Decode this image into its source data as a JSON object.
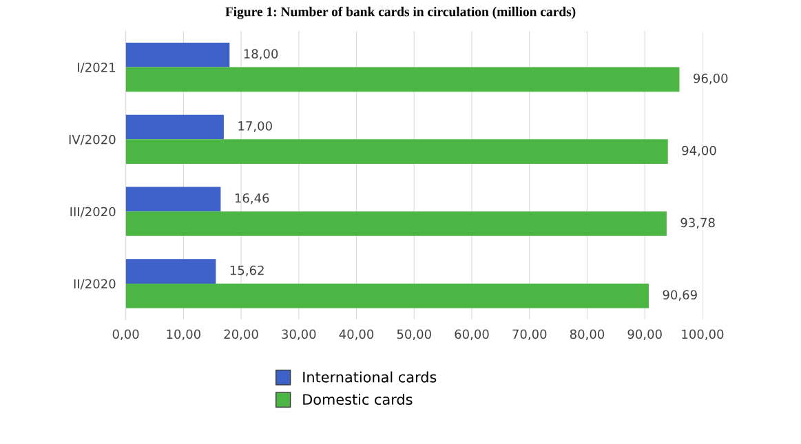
{
  "chart_data": {
    "type": "bar",
    "orientation": "horizontal",
    "title": "Figure 1: Number of bank cards in circulation (million cards)",
    "categories": [
      "I/2021",
      "IV/2020",
      "III/2020",
      "II/2020"
    ],
    "series": [
      {
        "name": "International cards",
        "color": "#3f62c8",
        "values": [
          18.0,
          17.0,
          16.46,
          15.62
        ],
        "value_labels": [
          "18,00",
          "17,00",
          "16,46",
          "15,62"
        ]
      },
      {
        "name": "Domestic cards",
        "color": "#4cb644",
        "values": [
          96.0,
          94.0,
          93.78,
          90.69
        ],
        "value_labels": [
          "96,00",
          "94,00",
          "93,78",
          "90,69"
        ]
      }
    ],
    "xlim": [
      0,
      100
    ],
    "xticks": [
      {
        "value": 0,
        "label": "0,00"
      },
      {
        "value": 10,
        "label": "10,00"
      },
      {
        "value": 20,
        "label": "20,00"
      },
      {
        "value": 30,
        "label": "30,00"
      },
      {
        "value": 40,
        "label": "40,00"
      },
      {
        "value": 50,
        "label": "50,00"
      },
      {
        "value": 60,
        "label": "60,00"
      },
      {
        "value": 70,
        "label": "70,00"
      },
      {
        "value": 80,
        "label": "80,00"
      },
      {
        "value": 90,
        "label": "90,00"
      },
      {
        "value": 100,
        "label": "100,00"
      }
    ],
    "grid": "x",
    "legend": "bottom"
  }
}
